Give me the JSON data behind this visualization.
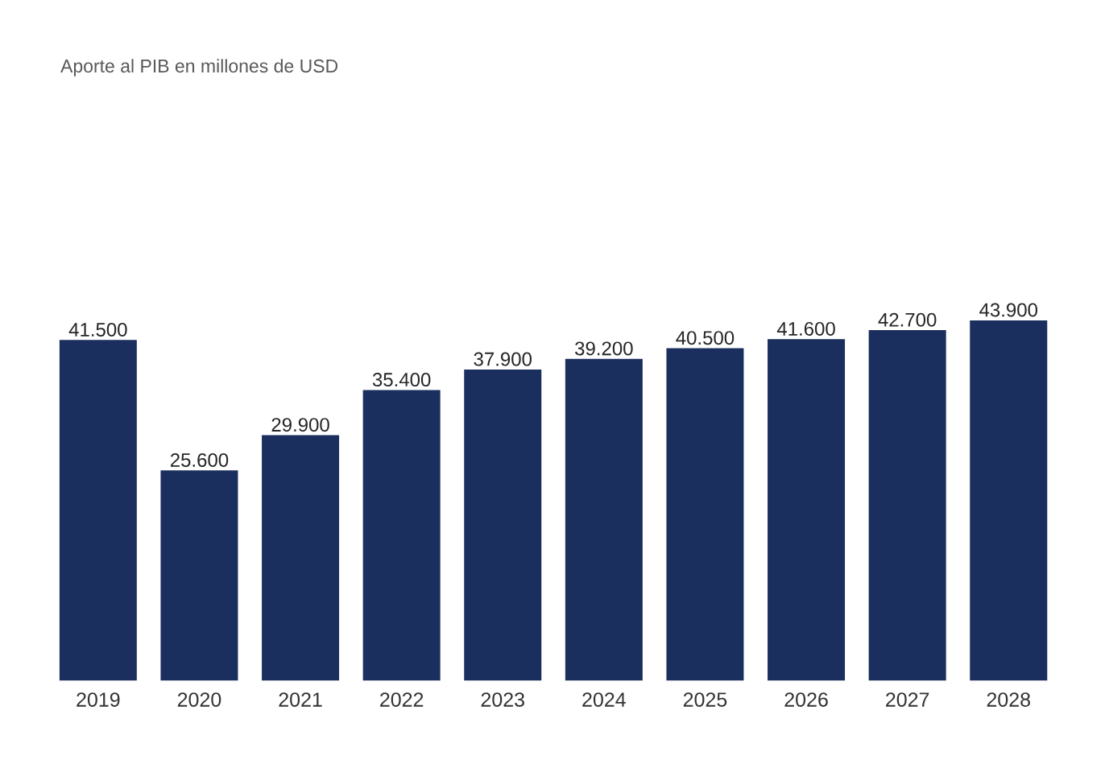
{
  "chart_data": {
    "type": "bar",
    "title": "Aporte al PIB en millones de USD",
    "categories": [
      "2019",
      "2020",
      "2021",
      "2022",
      "2023",
      "2024",
      "2025",
      "2026",
      "2027",
      "2028"
    ],
    "values": [
      41500,
      25600,
      29900,
      35400,
      37900,
      39200,
      40500,
      41600,
      42700,
      43900
    ],
    "value_labels": [
      "41.500",
      "25.600",
      "29.900",
      "35.400",
      "37.900",
      "39.200",
      "40.500",
      "41.600",
      "42.700",
      "43.900"
    ],
    "color": "#1b2f5e"
  }
}
